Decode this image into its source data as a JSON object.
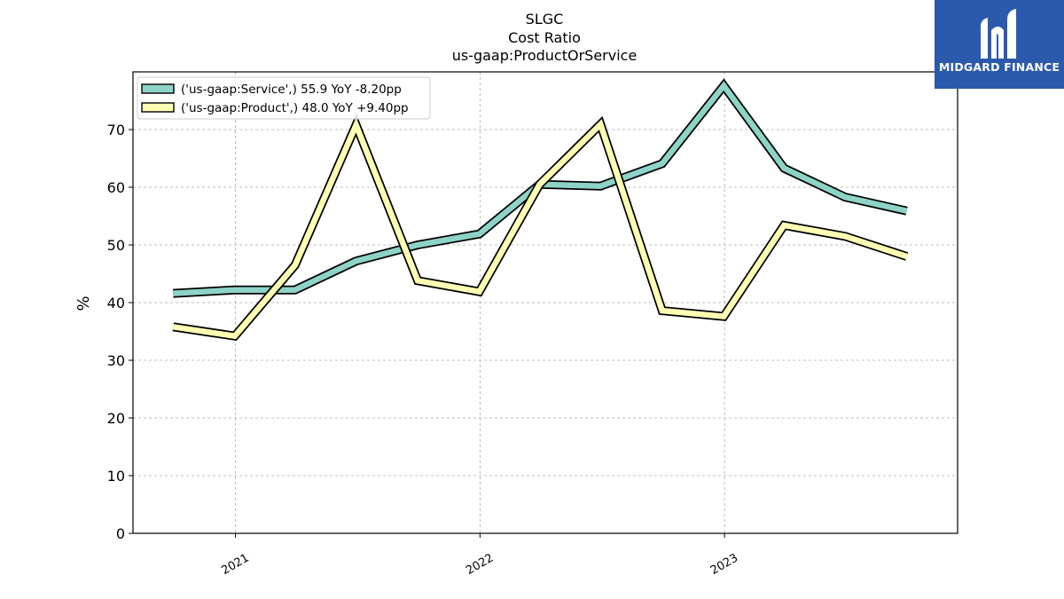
{
  "brand": {
    "name": "MIDGARD FINANCE",
    "logo_bg": "#2b5aad",
    "logo_icon": "stylized-m-logo-icon"
  },
  "chart_data": {
    "type": "line",
    "title_lines": [
      "SLGC",
      "Cost Ratio",
      "us-gaap:ProductOrService"
    ],
    "xlabel": "",
    "ylabel": "%",
    "ylim": [
      0,
      80
    ],
    "y_ticks": [
      0,
      10,
      20,
      30,
      40,
      50,
      60,
      70
    ],
    "x_range": [
      "2020-08-01",
      "2023-12-15"
    ],
    "x_ticks": [
      {
        "date": "2021-01-01",
        "label": "2021"
      },
      {
        "date": "2022-01-01",
        "label": "2022"
      },
      {
        "date": "2023-01-01",
        "label": "2023"
      }
    ],
    "grid": true,
    "legend_position": "upper-left",
    "x": [
      "2020-09-30",
      "2020-12-31",
      "2021-03-31",
      "2021-06-30",
      "2021-09-30",
      "2021-12-31",
      "2022-03-31",
      "2022-06-30",
      "2022-09-30",
      "2022-12-31",
      "2023-03-31",
      "2023-06-30",
      "2023-09-30"
    ],
    "series": [
      {
        "name": "('us-gaap:Service',) 55.9 YoY -8.20pp",
        "color": "#8dd3c7",
        "values": [
          41.6,
          42.2,
          42.2,
          47.2,
          50.0,
          51.9,
          60.5,
          60.2,
          64.1,
          77.6,
          63.3,
          58.3,
          55.9
        ]
      },
      {
        "name": "('us-gaap:Product',) 48.0 YoY +9.40pp",
        "color": "#ffffb3",
        "values": [
          35.8,
          34.2,
          46.5,
          70.8,
          43.8,
          41.9,
          60.5,
          70.9,
          38.6,
          37.6,
          53.4,
          51.5,
          48.0
        ]
      }
    ]
  }
}
